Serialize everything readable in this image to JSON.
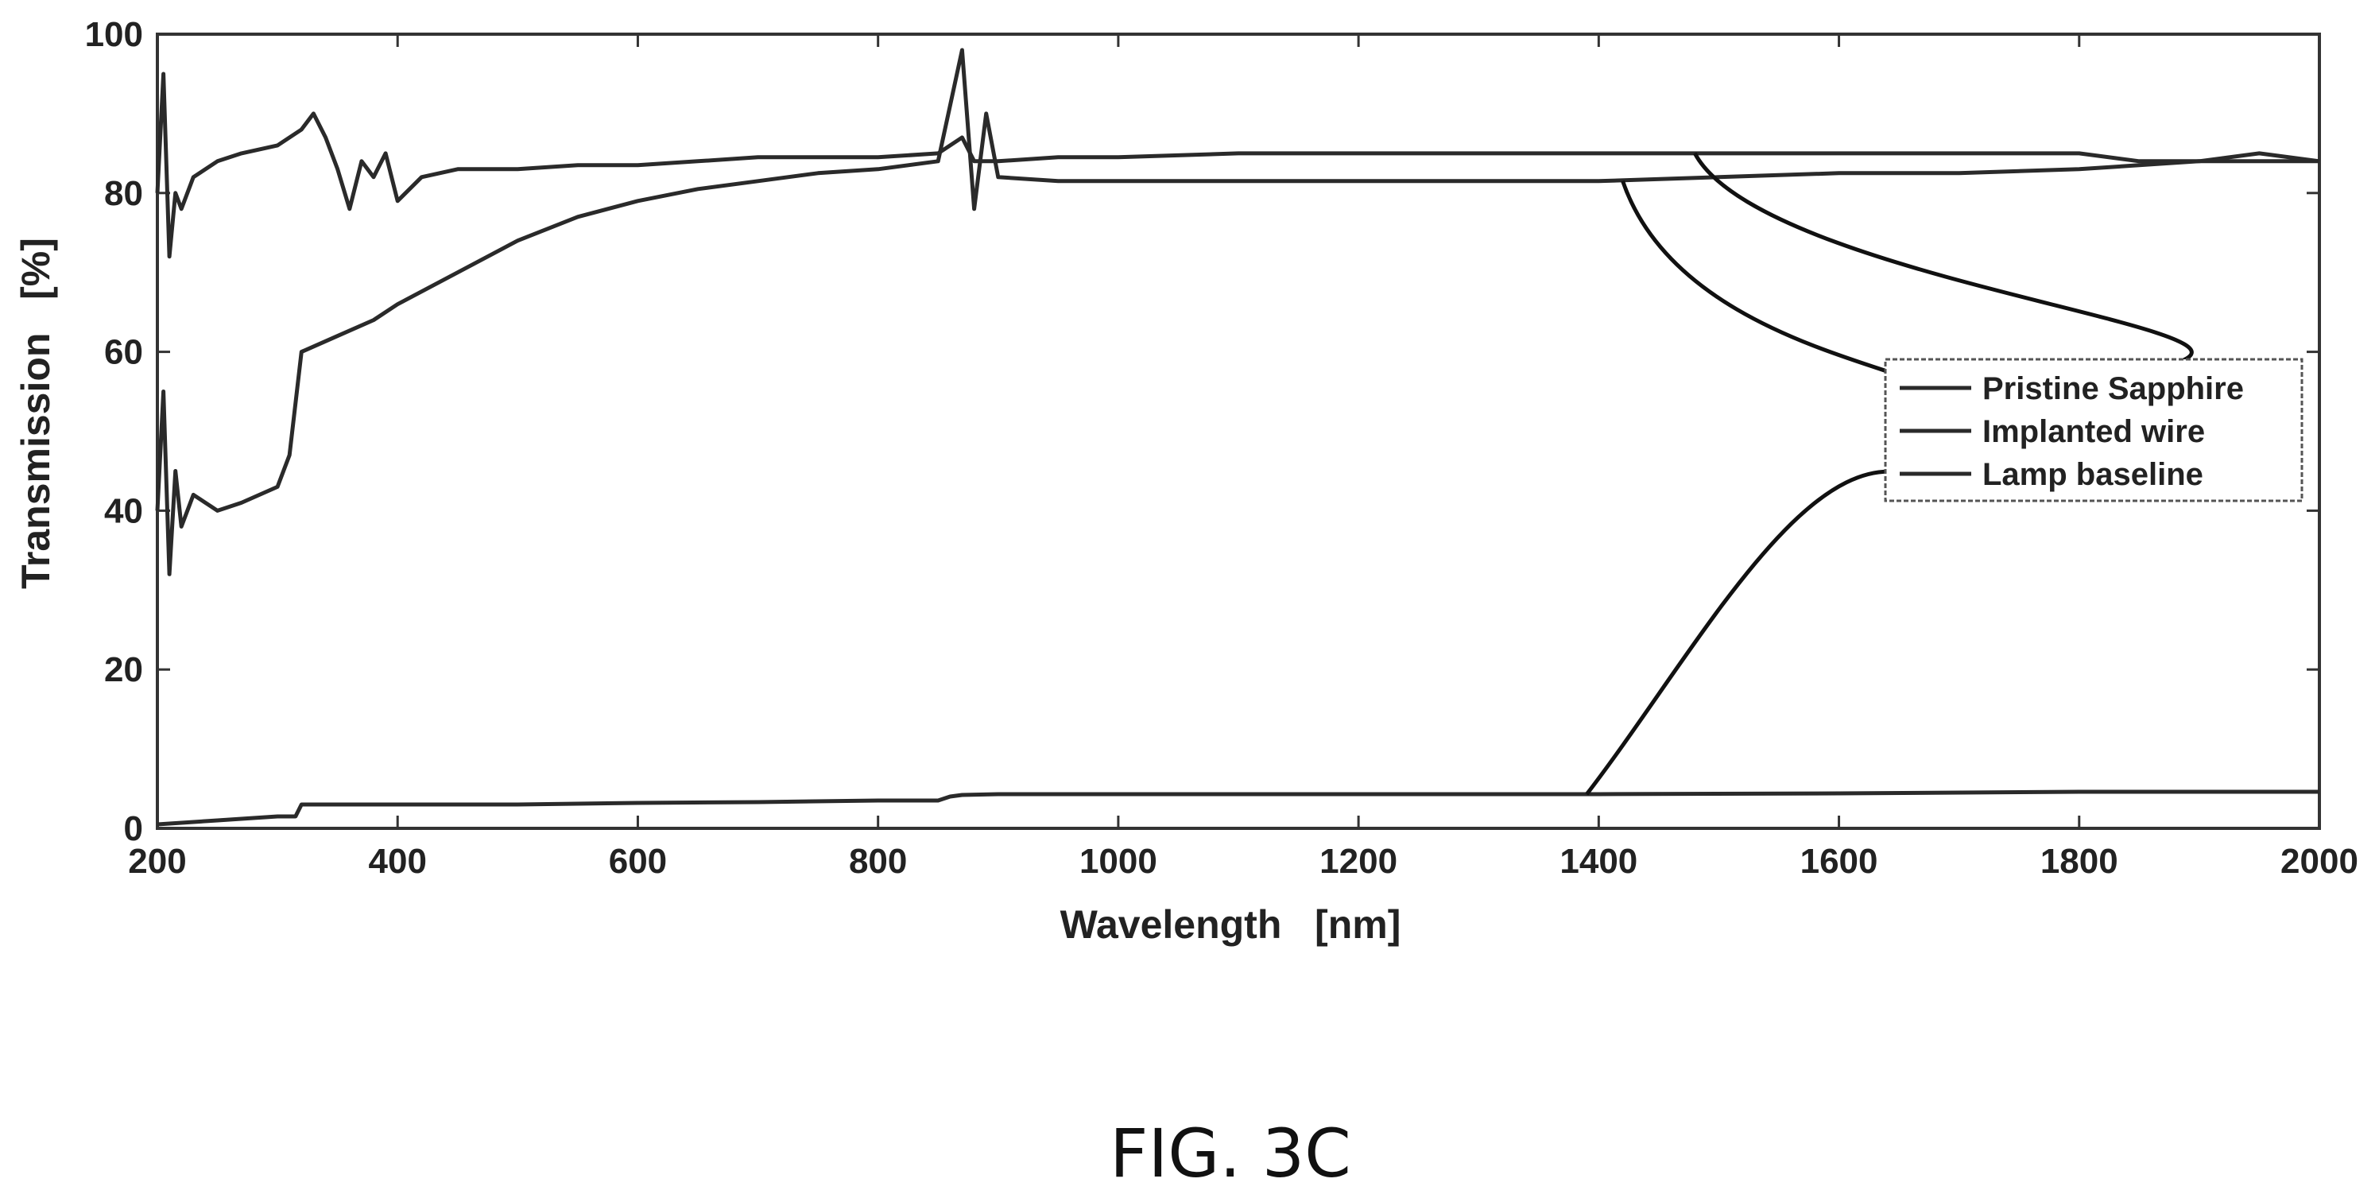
{
  "figure": {
    "caption": "FIG. 3C"
  },
  "chart_data": {
    "type": "line",
    "title": "",
    "xlabel": "Wavelength   [nm]",
    "ylabel": "Transmission   [%]",
    "xlim": [
      200,
      2000
    ],
    "ylim": [
      0,
      100
    ],
    "xticks": [
      200,
      400,
      600,
      800,
      1000,
      1200,
      1400,
      1600,
      1800,
      2000
    ],
    "yticks": [
      0,
      20,
      40,
      60,
      80,
      100
    ],
    "grid": false,
    "legend_position": "right",
    "series": [
      {
        "name": "Pristine Sapphire",
        "x": [
          200,
          205,
          210,
          215,
          220,
          230,
          250,
          270,
          300,
          320,
          330,
          340,
          350,
          360,
          370,
          380,
          390,
          400,
          420,
          450,
          500,
          550,
          600,
          650,
          700,
          750,
          800,
          850,
          870,
          880,
          900,
          950,
          1000,
          1100,
          1200,
          1300,
          1400,
          1480,
          1500,
          1600,
          1700,
          1800,
          1850,
          1900,
          1950,
          2000
        ],
        "y": [
          80,
          95,
          72,
          80,
          78,
          82,
          84,
          85,
          86,
          88,
          90,
          87,
          83,
          78,
          84,
          82,
          85,
          79,
          82,
          83,
          83,
          83.5,
          83.5,
          84,
          84.5,
          84.5,
          84.5,
          85,
          87,
          84,
          84,
          84.5,
          84.5,
          85,
          85,
          85,
          85,
          85,
          85,
          85,
          85,
          85,
          84,
          84,
          85,
          84
        ]
      },
      {
        "name": "Implanted wire",
        "x": [
          200,
          205,
          210,
          215,
          220,
          230,
          250,
          270,
          300,
          310,
          320,
          350,
          380,
          400,
          450,
          500,
          550,
          600,
          650,
          700,
          750,
          800,
          850,
          870,
          880,
          890,
          900,
          950,
          1000,
          1100,
          1200,
          1300,
          1400,
          1500,
          1600,
          1700,
          1800,
          1850,
          1900,
          1950,
          2000
        ],
        "y": [
          40,
          55,
          32,
          45,
          38,
          42,
          40,
          41,
          43,
          47,
          60,
          62,
          64,
          66,
          70,
          74,
          77,
          79,
          80.5,
          81.5,
          82.5,
          83,
          84,
          98,
          78,
          90,
          82,
          81.5,
          81.5,
          81.5,
          81.5,
          81.5,
          81.5,
          82,
          82.5,
          82.5,
          83,
          83.5,
          84,
          84,
          84
        ]
      },
      {
        "name": "Lamp baseline",
        "x": [
          200,
          250,
          300,
          315,
          320,
          400,
          500,
          600,
          700,
          800,
          850,
          860,
          870,
          900,
          1000,
          1200,
          1400,
          1600,
          1800,
          2000
        ],
        "y": [
          0.5,
          1,
          1.5,
          1.5,
          3,
          3,
          3,
          3.2,
          3.3,
          3.5,
          3.5,
          4,
          4.2,
          4.3,
          4.3,
          4.3,
          4.3,
          4.4,
          4.6,
          4.6
        ]
      }
    ]
  }
}
